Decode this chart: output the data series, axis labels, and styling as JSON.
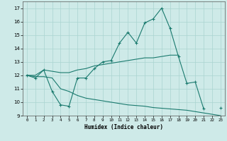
{
  "xlabel": "Humidex (Indice chaleur)",
  "x_values": [
    0,
    1,
    2,
    3,
    4,
    5,
    6,
    7,
    8,
    9,
    10,
    11,
    12,
    13,
    14,
    15,
    16,
    17,
    18,
    19,
    20,
    21,
    22,
    23
  ],
  "line1": [
    12.0,
    11.8,
    12.4,
    10.8,
    9.8,
    9.7,
    11.8,
    11.8,
    12.5,
    13.0,
    13.1,
    14.4,
    15.2,
    14.4,
    15.9,
    16.2,
    17.0,
    15.5,
    13.4,
    11.4,
    11.5,
    9.5,
    null,
    9.6
  ],
  "line2": [
    12.0,
    12.0,
    12.4,
    12.3,
    12.2,
    12.2,
    12.4,
    12.5,
    12.7,
    12.8,
    12.9,
    13.0,
    13.1,
    13.2,
    13.3,
    13.3,
    13.4,
    13.5,
    13.5,
    null,
    null,
    null,
    null,
    null
  ],
  "line3": [
    12.0,
    11.9,
    11.9,
    11.8,
    11.0,
    10.8,
    10.5,
    10.3,
    10.2,
    10.1,
    10.0,
    9.9,
    9.8,
    9.75,
    9.7,
    9.6,
    9.55,
    9.5,
    9.45,
    9.4,
    9.3,
    9.2,
    9.1,
    9.0
  ],
  "line_color": "#1a7a6e",
  "bg_color": "#ceeae8",
  "grid_color": "#aad4d0",
  "ylim": [
    9,
    17.5
  ],
  "xlim": [
    -0.5,
    23.5
  ],
  "yticks": [
    9,
    10,
    11,
    12,
    13,
    14,
    15,
    16,
    17
  ],
  "xticks": [
    0,
    1,
    2,
    3,
    4,
    5,
    6,
    7,
    8,
    9,
    10,
    11,
    12,
    13,
    14,
    15,
    16,
    17,
    18,
    19,
    20,
    21,
    22,
    23
  ]
}
